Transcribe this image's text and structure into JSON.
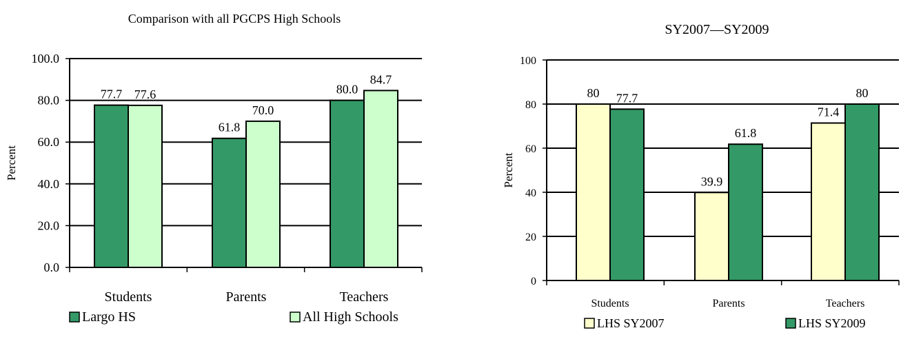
{
  "chart_data": [
    {
      "type": "bar",
      "title": "Comparison with all PGCPS High Schools",
      "ylabel": "Percent",
      "xlabel": "",
      "ylim": [
        0,
        100
      ],
      "yticks": [
        0,
        20,
        40,
        60,
        80,
        100
      ],
      "ytick_labels": [
        "0.0",
        "20.0",
        "40.0",
        "60.0",
        "80.0",
        "100.0"
      ],
      "grid": true,
      "legend_position": "bottom",
      "categories": [
        "Students",
        "Parents",
        "Teachers"
      ],
      "series": [
        {
          "name": "Largo HS",
          "values": [
            77.7,
            61.8,
            80.0
          ],
          "labels": [
            "77.7",
            "61.8",
            "80.0"
          ],
          "color": "#339966"
        },
        {
          "name": "All High Schools",
          "values": [
            77.6,
            70.0,
            84.7
          ],
          "labels": [
            "77.6",
            "70.0",
            "84.7"
          ],
          "color": "#ccffcc"
        }
      ]
    },
    {
      "type": "bar",
      "title": "SY2007—SY2009",
      "ylabel": "Percent",
      "xlabel": "",
      "ylim": [
        0,
        100
      ],
      "yticks": [
        0,
        20,
        40,
        60,
        80,
        100
      ],
      "ytick_labels": [
        "0",
        "20",
        "40",
        "60",
        "80",
        "100"
      ],
      "grid": true,
      "legend_position": "bottom",
      "categories": [
        "Students",
        "Parents",
        "Teachers"
      ],
      "series": [
        {
          "name": "LHS SY2007",
          "values": [
            80,
            39.9,
            71.4
          ],
          "labels": [
            "80",
            "39.9",
            "71.4"
          ],
          "color": "#ffffcc"
        },
        {
          "name": "LHS SY2009",
          "values": [
            77.7,
            61.8,
            80
          ],
          "labels": [
            "77.7",
            "61.8",
            "80"
          ],
          "color": "#339966"
        }
      ]
    }
  ]
}
